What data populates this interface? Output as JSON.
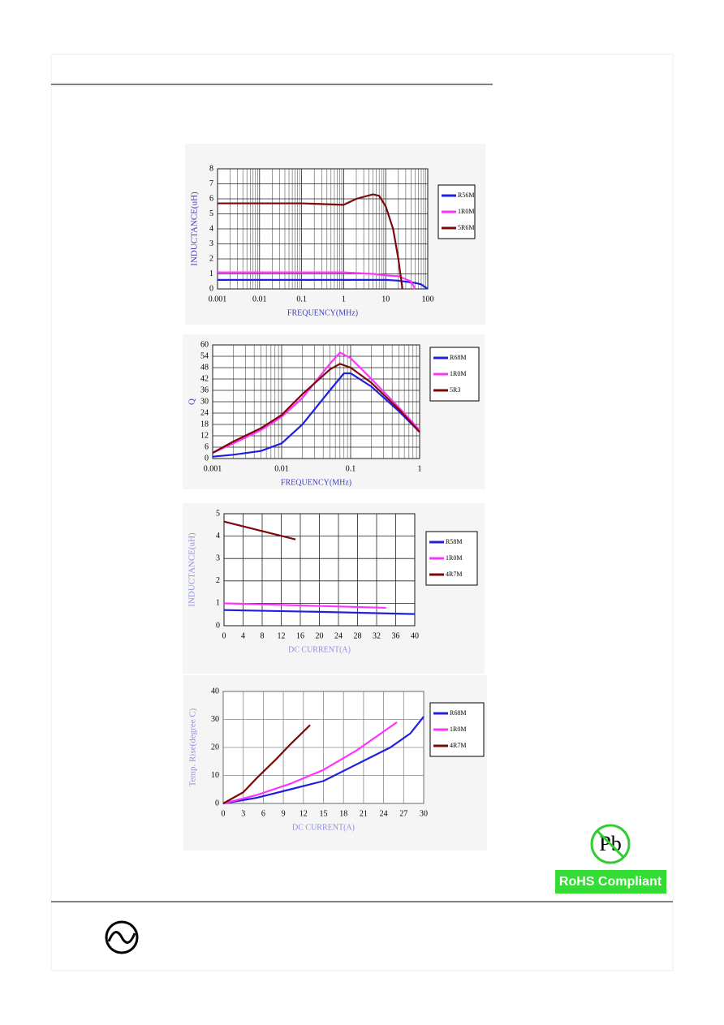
{
  "chart_data": [
    {
      "type": "line",
      "xlabel": "FREQUENCY(MHz)",
      "ylabel": "INDUCTANCE(uH)",
      "xscale": "log",
      "grid": true,
      "minor_grid": true,
      "legend": "right",
      "xlim": [
        0.001,
        100
      ],
      "xticks": [
        0.001,
        0.01,
        0.1,
        1,
        10,
        100
      ],
      "ylim": [
        0,
        8
      ],
      "yticks": [
        0,
        1,
        2,
        3,
        4,
        5,
        6,
        7,
        8
      ],
      "series": [
        {
          "name": "R56M",
          "color": "#1f1fe0",
          "x": [
            0.001,
            0.01,
            0.1,
            1,
            10,
            20,
            50,
            70,
            100
          ],
          "values": [
            0.6,
            0.6,
            0.6,
            0.6,
            0.6,
            0.55,
            0.4,
            0.3,
            0
          ]
        },
        {
          "name": "1R0M",
          "color": "#ff33ff",
          "x": [
            0.001,
            0.01,
            0.1,
            1,
            5,
            10,
            20,
            40,
            50
          ],
          "values": [
            1.1,
            1.1,
            1.1,
            1.1,
            1.0,
            0.9,
            0.85,
            0.5,
            0
          ]
        },
        {
          "name": "5R6M",
          "color": "#7a0a0a",
          "x": [
            0.001,
            0.01,
            0.1,
            1,
            2,
            5,
            7,
            10,
            15,
            20,
            25
          ],
          "values": [
            5.7,
            5.7,
            5.7,
            5.6,
            6.0,
            6.3,
            6.2,
            5.5,
            4,
            2,
            0
          ]
        }
      ]
    },
    {
      "type": "line",
      "xlabel": "FREQUENCY(MHz)",
      "ylabel": "Q",
      "xscale": "log",
      "grid": true,
      "minor_grid": true,
      "legend": "right",
      "xlim": [
        0.001,
        1
      ],
      "xticks": [
        0.001,
        0.01,
        0.1,
        1
      ],
      "ylim": [
        0,
        60
      ],
      "yticks": [
        0,
        6,
        12,
        18,
        24,
        30,
        36,
        42,
        48,
        54,
        60
      ],
      "series": [
        {
          "name": "R68M",
          "color": "#1f1fe0",
          "x": [
            0.001,
            0.002,
            0.005,
            0.01,
            0.02,
            0.05,
            0.08,
            0.1,
            0.2,
            0.5,
            1
          ],
          "values": [
            1,
            2,
            4,
            8,
            18,
            36,
            45,
            45,
            38,
            25,
            14
          ]
        },
        {
          "name": "1R0M",
          "color": "#ff33ff",
          "x": [
            0.001,
            0.002,
            0.005,
            0.01,
            0.02,
            0.05,
            0.07,
            0.1,
            0.2,
            0.5,
            1
          ],
          "values": [
            3,
            8,
            15,
            22,
            32,
            50,
            56,
            53,
            42,
            27,
            15
          ]
        },
        {
          "name": "5R3",
          "color": "#7a0a0a",
          "x": [
            0.001,
            0.002,
            0.005,
            0.01,
            0.02,
            0.05,
            0.07,
            0.1,
            0.2,
            0.5,
            1
          ],
          "values": [
            3,
            9,
            16,
            23,
            34,
            47,
            50,
            48,
            40,
            26,
            14
          ]
        }
      ]
    },
    {
      "type": "line",
      "xlabel": "DC CURRENT(A)",
      "ylabel": "INDUCTANCE(uH)",
      "grid": true,
      "legend": "right",
      "xlim": [
        0,
        40
      ],
      "xticks": [
        0,
        4,
        8,
        12,
        16,
        20,
        24,
        28,
        32,
        36,
        40
      ],
      "ylim": [
        0,
        5
      ],
      "yticks": [
        0,
        1,
        2,
        3,
        4,
        5
      ],
      "series": [
        {
          "name": "R58M",
          "color": "#1f1fe0",
          "x": [
            0,
            20,
            40
          ],
          "values": [
            0.7,
            0.62,
            0.52
          ]
        },
        {
          "name": "1R0M",
          "color": "#ff33ff",
          "x": [
            0,
            34
          ],
          "values": [
            1.0,
            0.8
          ]
        },
        {
          "name": "4R7M",
          "color": "#7a0a0a",
          "x": [
            0,
            15
          ],
          "values": [
            4.65,
            3.85
          ]
        }
      ]
    },
    {
      "type": "line",
      "xlabel": "DC CURRENT(A)",
      "ylabel": "Temp. Rise(degree C)",
      "grid": true,
      "legend": "right",
      "xlim": [
        0,
        30
      ],
      "xticks": [
        0,
        3,
        6,
        9,
        12,
        15,
        18,
        21,
        24,
        27,
        30
      ],
      "ylim": [
        0,
        40
      ],
      "yticks": [
        0,
        10,
        20,
        30,
        40
      ],
      "series": [
        {
          "name": "R68M",
          "color": "#1f1fe0",
          "x": [
            0,
            5,
            10,
            15,
            20,
            25,
            28,
            30
          ],
          "values": [
            0,
            2,
            5,
            8,
            14,
            20,
            25,
            31
          ]
        },
        {
          "name": "1R0M",
          "color": "#ff33ff",
          "x": [
            0,
            5,
            10,
            15,
            20,
            26
          ],
          "values": [
            0,
            3,
            7,
            12,
            19,
            29
          ]
        },
        {
          "name": "4R7M",
          "color": "#7a0a0a",
          "x": [
            0,
            3,
            5,
            8,
            10,
            13
          ],
          "values": [
            0,
            4,
            9,
            16,
            21,
            28
          ]
        }
      ]
    }
  ],
  "badge": {
    "symbol": "Pb",
    "label": "RoHS Compliant"
  }
}
